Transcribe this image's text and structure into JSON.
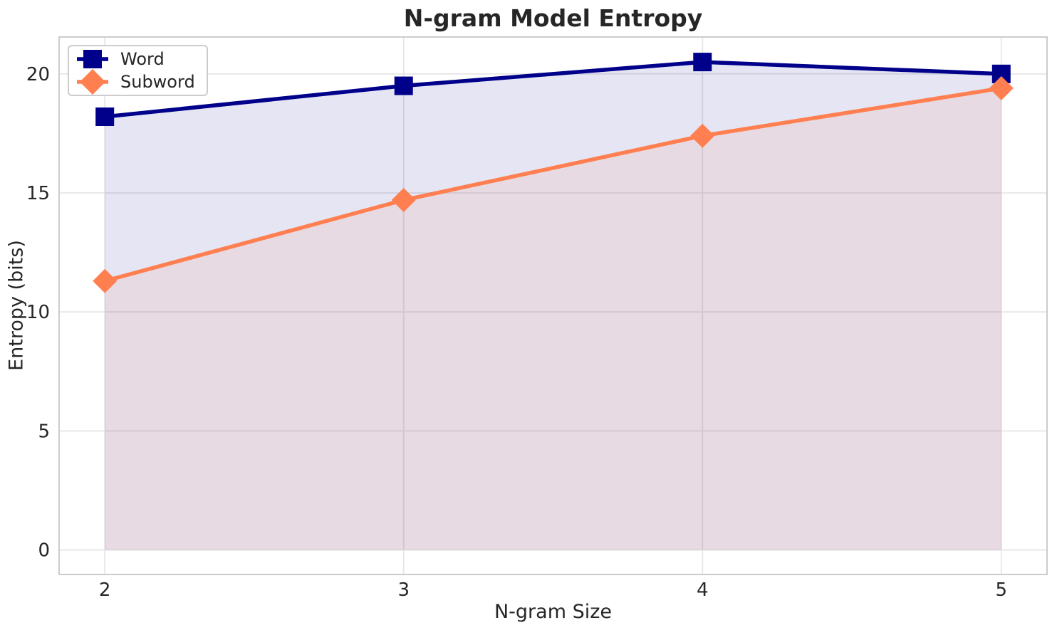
{
  "chart_data": {
    "type": "line",
    "title": "N-gram Model Entropy",
    "xlabel": "N-gram Size",
    "ylabel": "Entropy (bits)",
    "x": [
      2,
      3,
      4,
      5
    ],
    "series": [
      {
        "name": "Word",
        "color": "#00008B",
        "marker": "square",
        "values": [
          18.2,
          19.5,
          20.5,
          20.0
        ],
        "fill_to_zero": true
      },
      {
        "name": "Subword",
        "color": "#FF7F50",
        "marker": "diamond",
        "values": [
          11.3,
          14.7,
          17.4,
          19.4
        ],
        "fill_to_zero": true
      }
    ],
    "xticks": [
      2,
      3,
      4,
      5
    ],
    "yticks": [
      0,
      5,
      10,
      15,
      20
    ],
    "xlim": [
      1.847,
      5.153
    ],
    "ylim": [
      -1.03,
      21.55
    ],
    "grid": true,
    "grid_color": "#e6e6e6",
    "spine_color": "#cccccc",
    "text_color": "#262626",
    "fill_opacity": 0.1,
    "legend_position": "top-left"
  }
}
